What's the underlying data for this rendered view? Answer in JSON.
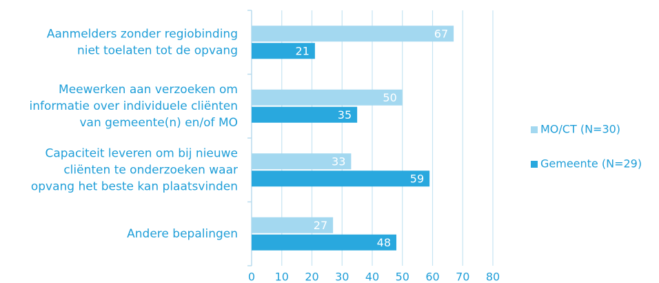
{
  "chart_data": {
    "type": "barh",
    "categories": [
      "Aanmelders zonder regiobinding\nniet toelaten tot de opvang",
      "Meewerken aan verzoeken om\ninformatie over individuele cliënten\nvan gemeente(n) en/of MO",
      "Capaciteit leveren om bij nieuwe\ncliënten te onderzoeken waar\nopvang het beste kan plaatsvinden",
      "Andere bepalingen"
    ],
    "series": [
      {
        "name": "MO/CT (N=30)",
        "color": "#a3d8f0",
        "values": [
          67,
          50,
          33,
          27
        ]
      },
      {
        "name": "Gemeente (N=29)",
        "color": "#29a8de",
        "values": [
          21,
          35,
          59,
          48
        ]
      }
    ],
    "xlim": [
      0,
      80
    ],
    "xticks": [
      0,
      10,
      20,
      30,
      40,
      50,
      60,
      70,
      80
    ],
    "grid": true,
    "legend": "right"
  }
}
